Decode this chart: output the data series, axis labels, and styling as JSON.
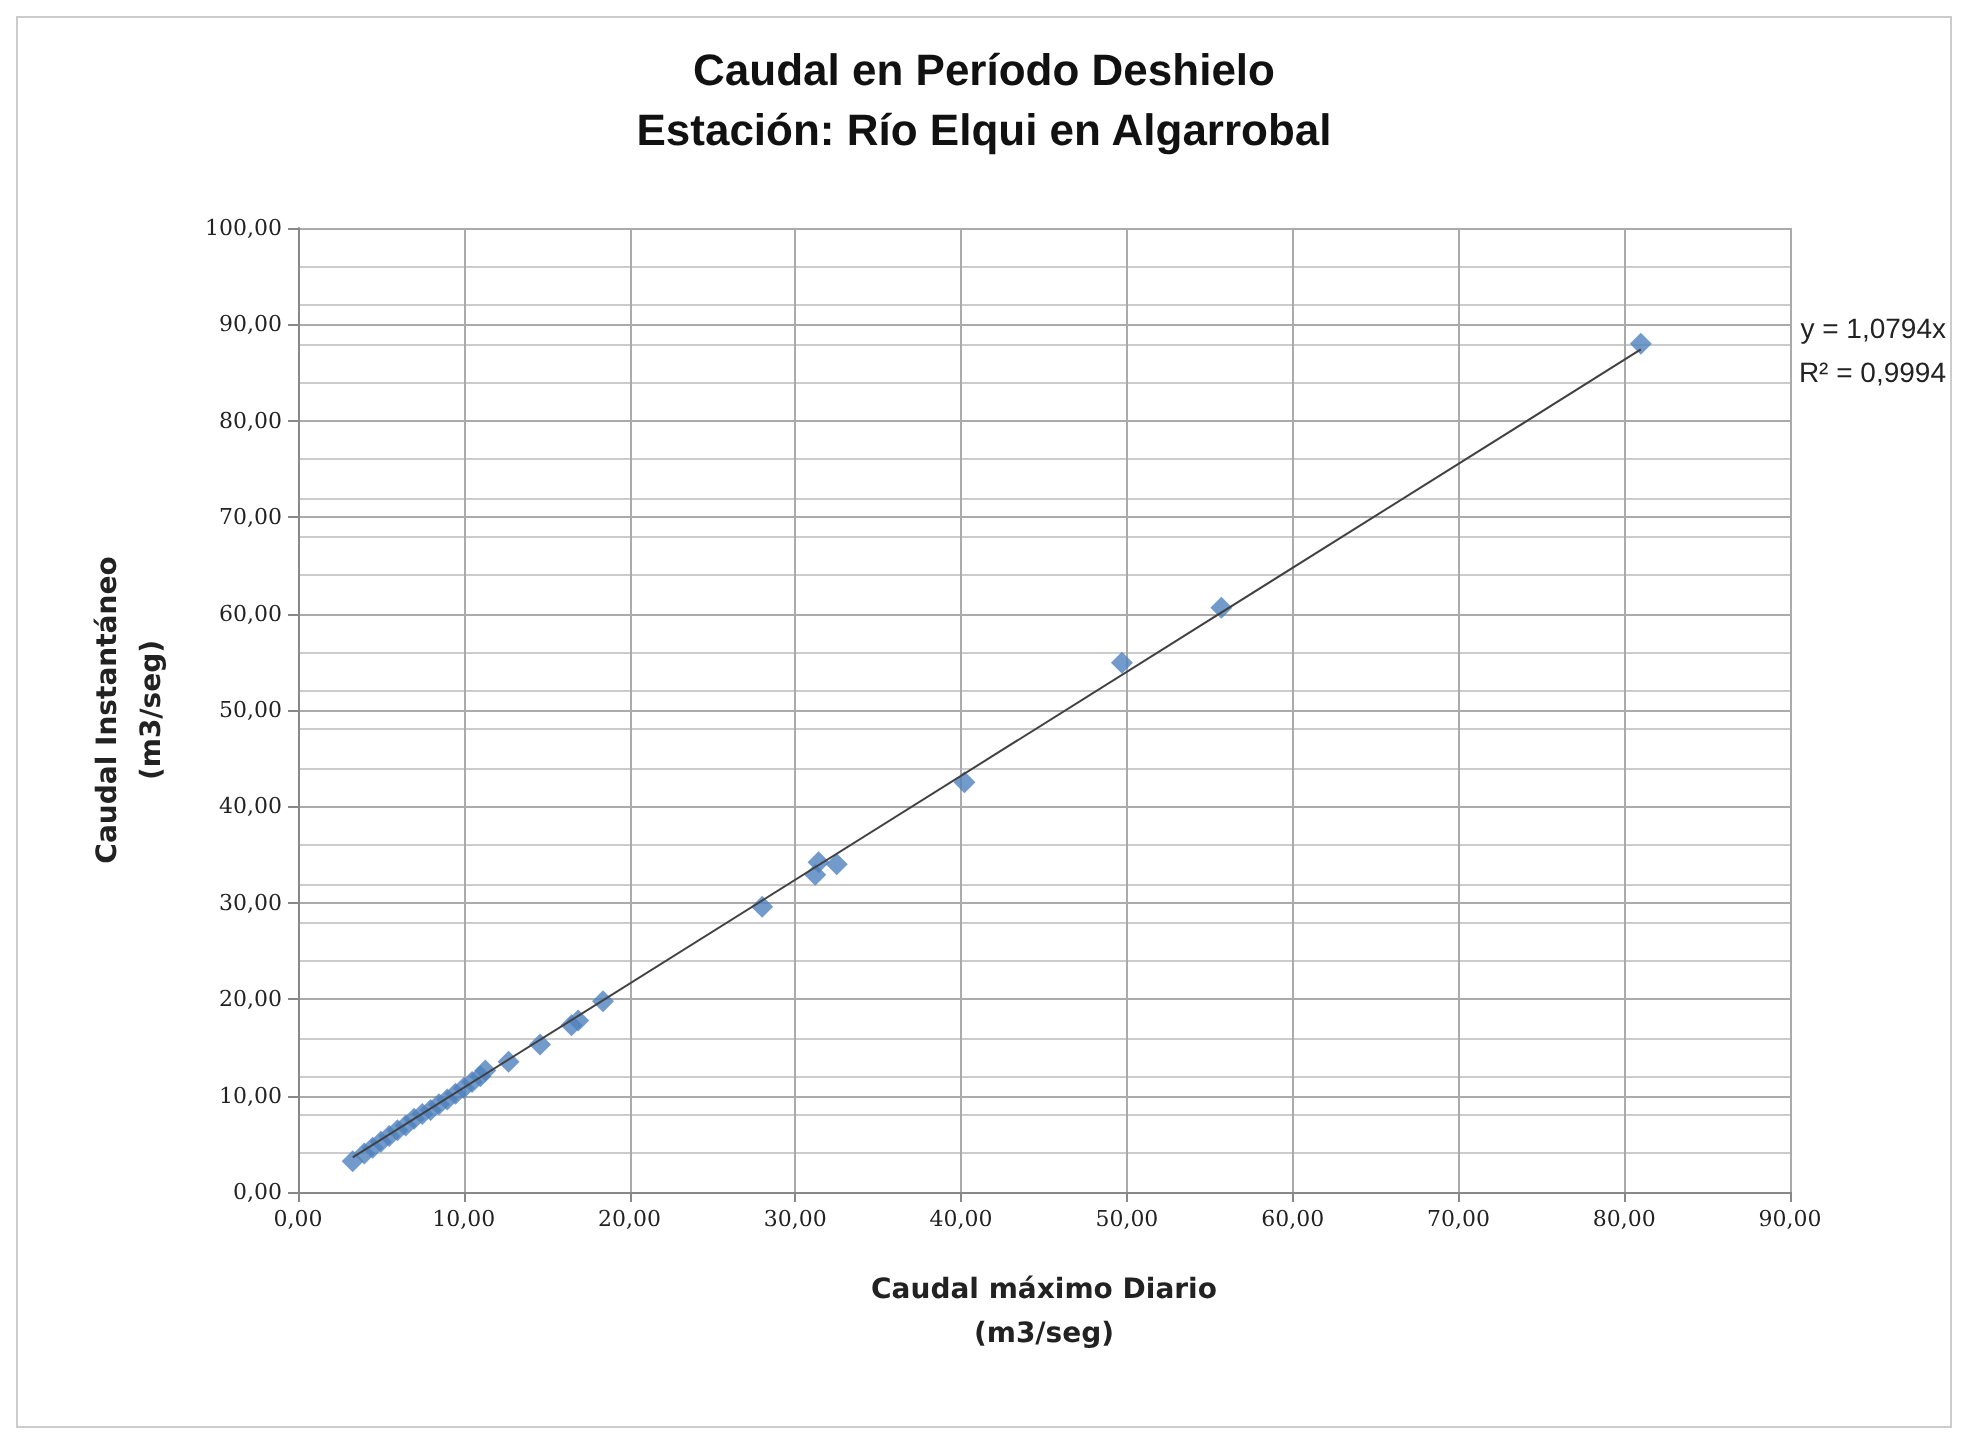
{
  "chart_data": {
    "type": "scatter",
    "title": "Caudal en Período Deshielo\nEstación: Río Elqui en Algarrobal",
    "xlabel": "Caudal máximo Diario\n(m3/seg)",
    "ylabel": "Caudal Instantáneo\n(m3/seg)",
    "annotations": [
      "y = 1,0794x",
      "R² = 0,9994"
    ],
    "marker": "diamond",
    "grid": true,
    "xlim": [
      0,
      90
    ],
    "xticks": [
      {
        "value": 0,
        "label": "0,00"
      },
      {
        "value": 10,
        "label": "10,00"
      },
      {
        "value": 20,
        "label": "20,00"
      },
      {
        "value": 30,
        "label": "30,00"
      },
      {
        "value": 40,
        "label": "40,00"
      },
      {
        "value": 50,
        "label": "50,00"
      },
      {
        "value": 60,
        "label": "60,00"
      },
      {
        "value": 70,
        "label": "70,00"
      },
      {
        "value": 80,
        "label": "80,00"
      },
      {
        "value": 90,
        "label": "90,00"
      }
    ],
    "ylim": [
      0,
      100
    ],
    "yticks": [
      {
        "value": 0,
        "label": "0,00"
      },
      {
        "value": 10,
        "label": "10,00"
      },
      {
        "value": 20,
        "label": "20,00"
      },
      {
        "value": 30,
        "label": "30,00"
      },
      {
        "value": 40,
        "label": "40,00"
      },
      {
        "value": 50,
        "label": "50,00"
      },
      {
        "value": 60,
        "label": "60,00"
      },
      {
        "value": 70,
        "label": "70,00"
      },
      {
        "value": 80,
        "label": "80,00"
      },
      {
        "value": 90,
        "label": "90,00"
      },
      {
        "value": 100,
        "label": "100,00"
      }
    ],
    "series": [
      {
        "color": "#4f81bd",
        "x": [
          3.3,
          4,
          4.5,
          5,
          5.5,
          6,
          6.5,
          7,
          7.5,
          8,
          8.5,
          9,
          9.5,
          10,
          10.5,
          11,
          11.3,
          12.7,
          14.6,
          16.5,
          16.9,
          18.4,
          28,
          31.2,
          31.4,
          32.5,
          40.2,
          49.7,
          55.7,
          81
        ],
        "values": [
          3.2,
          4,
          4.6,
          5.2,
          5.8,
          6.4,
          6.9,
          7.6,
          8.1,
          8.5,
          9.1,
          9.6,
          10.2,
          10.8,
          11.4,
          12,
          12.6,
          13.5,
          15.3,
          17.3,
          17.8,
          19.8,
          29.6,
          32.9,
          34.2,
          34,
          42.5,
          54.9,
          60.6,
          88
        ]
      },
      {
        "type": "line",
        "color": "#404040",
        "x": [
          3.3,
          81
        ],
        "values": [
          3.6,
          87.4
        ],
        "marker": "none"
      }
    ]
  }
}
